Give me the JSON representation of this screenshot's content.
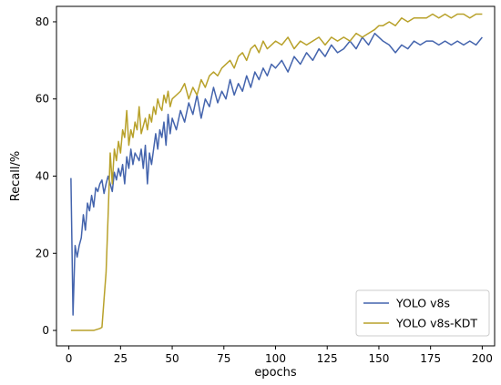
{
  "chart_data": {
    "type": "line",
    "title": "",
    "xlabel": "epochs",
    "ylabel": "Recall/%",
    "xlim": [
      -6,
      206
    ],
    "ylim": [
      -4,
      84
    ],
    "xticks": [
      0,
      25,
      50,
      75,
      100,
      125,
      150,
      175,
      200
    ],
    "yticks": [
      0,
      20,
      40,
      60,
      80
    ],
    "grid": false,
    "legend_position": "lower-right",
    "series": [
      {
        "name": "YOLO v8s",
        "color": "#4464ad",
        "x": [
          1,
          2,
          3,
          4,
          5,
          6,
          7,
          8,
          9,
          10,
          11,
          12,
          13,
          14,
          15,
          16,
          17,
          18,
          19,
          20,
          21,
          22,
          23,
          24,
          25,
          26,
          27,
          28,
          29,
          30,
          31,
          32,
          33,
          34,
          35,
          36,
          37,
          38,
          39,
          40,
          41,
          42,
          43,
          44,
          45,
          46,
          47,
          48,
          49,
          50,
          52,
          54,
          56,
          58,
          60,
          62,
          64,
          66,
          68,
          70,
          72,
          74,
          76,
          78,
          80,
          82,
          84,
          86,
          88,
          90,
          92,
          94,
          96,
          98,
          100,
          103,
          106,
          109,
          112,
          115,
          118,
          121,
          124,
          127,
          130,
          133,
          136,
          139,
          142,
          145,
          148,
          150,
          152,
          155,
          158,
          161,
          164,
          167,
          170,
          173,
          176,
          179,
          182,
          185,
          188,
          191,
          194,
          197,
          200
        ],
        "y": [
          39.5,
          4,
          22,
          19,
          22,
          24,
          30,
          26,
          33,
          31,
          35,
          32,
          37,
          36,
          38,
          39,
          35.5,
          38,
          40,
          38,
          36,
          41,
          39,
          42,
          40,
          43,
          38,
          45,
          42,
          47,
          43,
          46,
          45,
          44,
          47,
          42,
          48,
          38,
          46,
          43,
          47,
          51,
          47,
          52,
          50,
          54,
          48,
          56,
          51,
          55,
          52,
          57,
          54,
          59,
          56,
          61,
          55,
          60,
          58,
          63,
          59,
          62,
          60,
          65,
          61,
          64,
          62,
          66,
          63,
          67,
          65,
          68,
          66,
          69,
          68,
          70,
          67,
          71,
          69,
          72,
          70,
          73,
          71,
          74,
          72,
          73,
          75,
          73,
          76,
          74,
          77,
          76,
          75,
          74,
          72,
          74,
          73,
          75,
          74,
          75,
          75,
          74,
          75,
          74,
          75,
          74,
          75,
          74,
          76
        ]
      },
      {
        "name": "YOLO v8s-KDT",
        "color": "#b8a12a",
        "x": [
          1,
          4,
          8,
          12,
          15,
          16,
          17,
          18,
          19,
          20,
          21,
          22,
          23,
          24,
          25,
          26,
          27,
          28,
          29,
          30,
          31,
          32,
          33,
          34,
          35,
          36,
          37,
          38,
          39,
          40,
          41,
          42,
          43,
          44,
          45,
          46,
          47,
          48,
          49,
          50,
          52,
          54,
          56,
          58,
          60,
          62,
          64,
          66,
          68,
          70,
          72,
          74,
          76,
          78,
          80,
          82,
          84,
          86,
          88,
          90,
          92,
          94,
          96,
          98,
          100,
          103,
          106,
          109,
          112,
          115,
          118,
          121,
          124,
          127,
          130,
          133,
          136,
          139,
          142,
          145,
          148,
          150,
          152,
          155,
          158,
          161,
          164,
          167,
          170,
          173,
          176,
          179,
          182,
          185,
          188,
          191,
          194,
          197,
          200
        ],
        "y": [
          0,
          0,
          0,
          0,
          0.5,
          0.8,
          8,
          15,
          30,
          46,
          38,
          47,
          44,
          49,
          46,
          52,
          50,
          57,
          48,
          52,
          50,
          54,
          52,
          58,
          51,
          53,
          55,
          52,
          56,
          54,
          58,
          56,
          60,
          58,
          57,
          61,
          59,
          62,
          58,
          60,
          61,
          62,
          64,
          60,
          63,
          61,
          65,
          63,
          66,
          67,
          66,
          68,
          69,
          70,
          68,
          71,
          72,
          70,
          73,
          74,
          72,
          75,
          73,
          74,
          75,
          74,
          76,
          73,
          75,
          74,
          75,
          76,
          74,
          76,
          75,
          76,
          75,
          77,
          76,
          77,
          78,
          79,
          79,
          80,
          79,
          81,
          80,
          81,
          81,
          81,
          82,
          81,
          82,
          81,
          82,
          82,
          81,
          82,
          82
        ]
      }
    ]
  }
}
